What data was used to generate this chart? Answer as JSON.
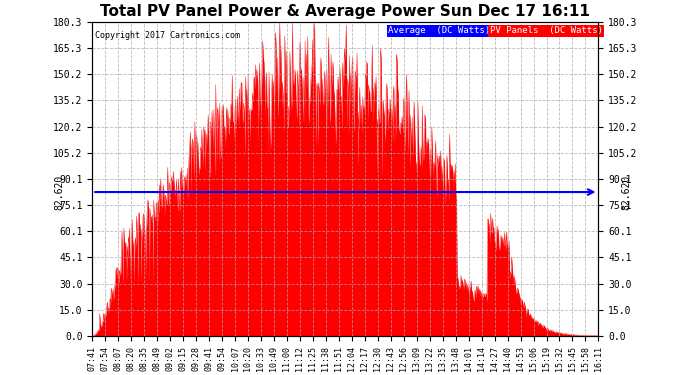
{
  "title": "Total PV Panel Power & Average Power Sun Dec 17 16:11",
  "copyright": "Copyright 2017 Cartronics.com",
  "legend_avg": "Average  (DC Watts)",
  "legend_pv": "PV Panels  (DC Watts)",
  "avg_value": 82.62,
  "avg_label": "82.620",
  "y_min": 0.0,
  "y_max": 180.3,
  "yticks": [
    0.0,
    15.0,
    30.0,
    45.1,
    60.1,
    75.1,
    90.1,
    105.2,
    120.2,
    135.2,
    150.2,
    165.3,
    180.3
  ],
  "ytick_labels": [
    "0.0",
    "15.0",
    "30.0",
    "45.1",
    "60.1",
    "75.1",
    "90.1",
    "105.2",
    "120.2",
    "135.2",
    "150.2",
    "165.3",
    "180.3"
  ],
  "xtick_labels": [
    "07:41",
    "07:54",
    "08:07",
    "08:20",
    "08:35",
    "08:49",
    "09:02",
    "09:15",
    "09:28",
    "09:41",
    "09:54",
    "10:07",
    "10:20",
    "10:33",
    "10:49",
    "11:00",
    "11:12",
    "11:25",
    "11:38",
    "11:51",
    "12:04",
    "12:17",
    "12:30",
    "12:43",
    "12:56",
    "13:09",
    "13:22",
    "13:35",
    "13:48",
    "14:01",
    "14:14",
    "14:27",
    "14:40",
    "14:53",
    "15:06",
    "15:19",
    "15:32",
    "15:45",
    "15:58",
    "16:11"
  ],
  "bg_color": "#ffffff",
  "plot_bg_color": "#ffffff",
  "grid_color": "#aaaaaa",
  "fill_color": "#ff0000",
  "line_color": "#ff0000",
  "avg_line_color": "#0000ff",
  "title_color": "#000000",
  "legend_avg_bg": "#0000ff",
  "legend_pv_bg": "#ff0000",
  "legend_text_color": "#ffffff"
}
